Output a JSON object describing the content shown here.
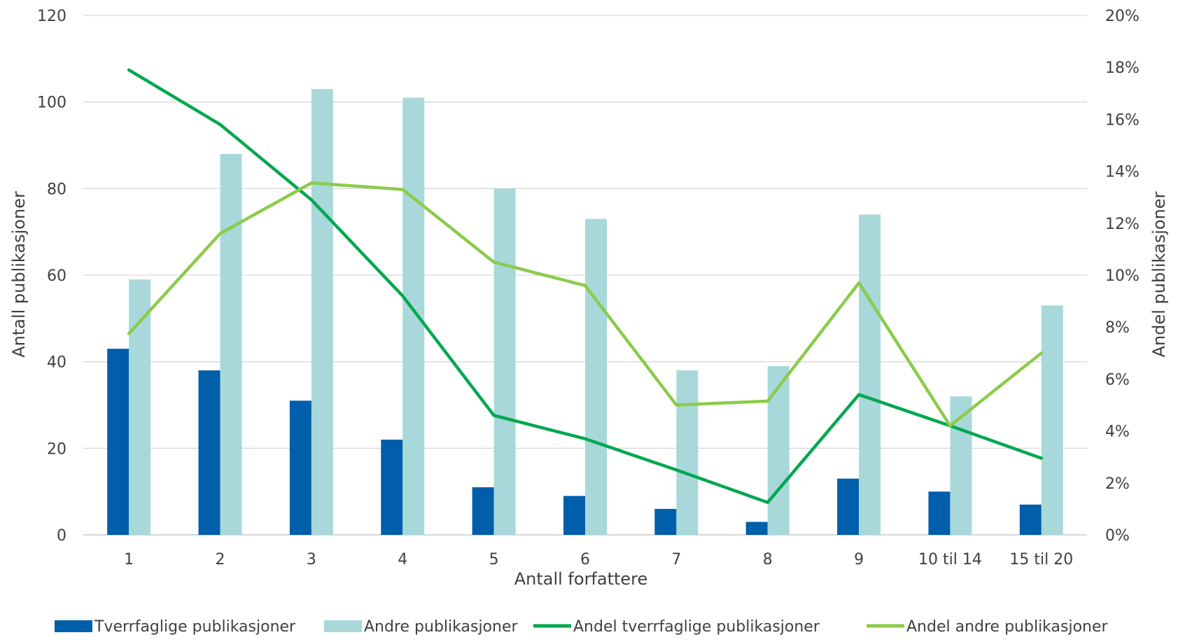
{
  "chart_data": {
    "type": "bar",
    "categories": [
      "1",
      "2",
      "3",
      "4",
      "5",
      "6",
      "7",
      "8",
      "9",
      "10 til 14",
      "15 til 20"
    ],
    "xlabel": "Antall forfattere",
    "ylabel": "Antall publikasjoner",
    "y2label": "Andel publikasjoner",
    "ylim": [
      0,
      120
    ],
    "y2lim": [
      0,
      0.2
    ],
    "yticks": [
      "0",
      "20",
      "40",
      "60",
      "80",
      "100",
      "120"
    ],
    "y2ticks": [
      "0%",
      "2%",
      "4%",
      "6%",
      "8%",
      "10%",
      "12%",
      "14%",
      "16%",
      "18%",
      "20%"
    ],
    "grid": true,
    "legend_position": "bottom",
    "series": [
      {
        "name": "Tverrfaglige publikasjoner",
        "type": "bar",
        "axis": "left",
        "color": "#005EAA",
        "values": [
          43,
          38,
          31,
          22,
          11,
          9,
          6,
          3,
          13,
          10,
          7
        ]
      },
      {
        "name": "Andre publikasjoner",
        "type": "bar",
        "axis": "left",
        "color": "#A8D8DA",
        "values": [
          59,
          88,
          103,
          101,
          80,
          73,
          38,
          39,
          74,
          32,
          53
        ]
      },
      {
        "name": "Andel  tverrfaglige publikasjoner",
        "type": "line",
        "axis": "right",
        "color": "#00A84F",
        "values": [
          0.179,
          0.158,
          0.129,
          0.092,
          0.046,
          0.037,
          0.025,
          0.0125,
          0.054,
          0.042,
          0.0295
        ]
      },
      {
        "name": "Andel andre publikasjoner",
        "type": "line",
        "axis": "right",
        "color": "#8CCB4B",
        "values": [
          0.0775,
          0.116,
          0.1355,
          0.133,
          0.105,
          0.096,
          0.05,
          0.0515,
          0.097,
          0.042,
          0.07
        ]
      }
    ]
  }
}
